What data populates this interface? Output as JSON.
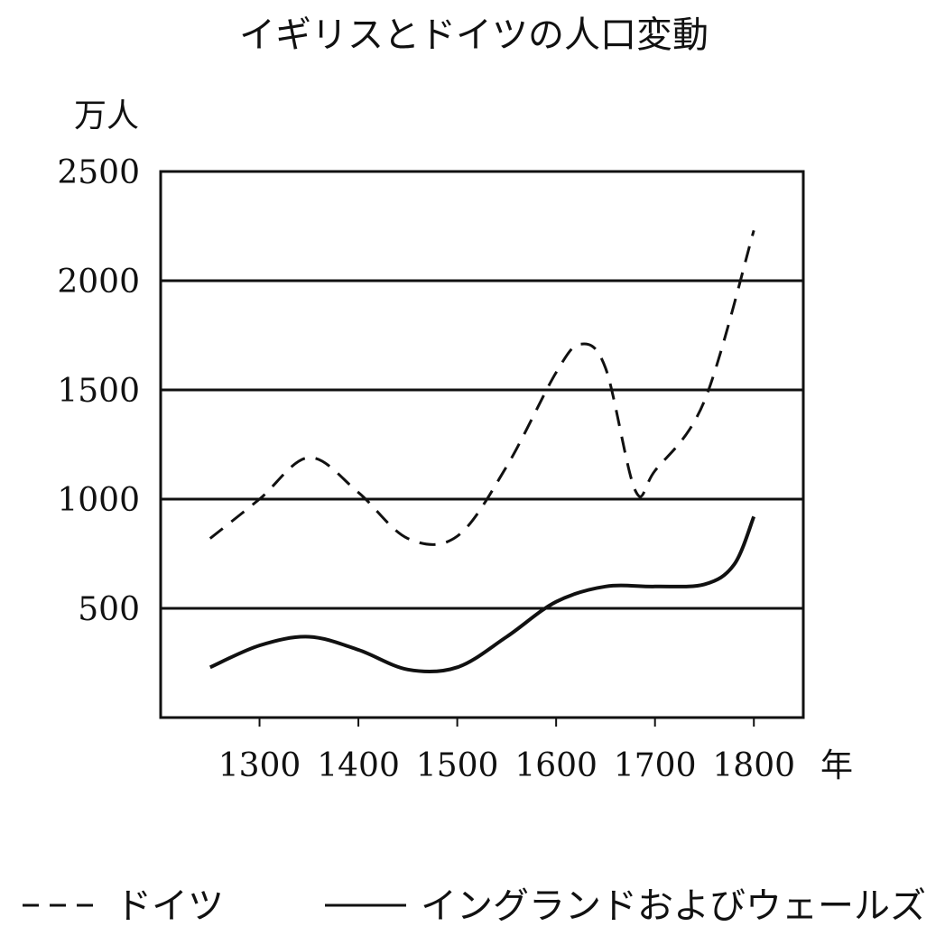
{
  "chart_data": {
    "type": "line",
    "title": "イギリスとドイツの人口変動",
    "ylabel": "万人",
    "xlabel": "年",
    "xlim": [
      1200,
      1850
    ],
    "ylim": [
      0,
      2500
    ],
    "x_ticks": [
      1300,
      1400,
      1500,
      1600,
      1700,
      1800
    ],
    "x_tick_labels": [
      "1300",
      "1400",
      "1500",
      "1600",
      "1700",
      "1800"
    ],
    "y_ticks": [
      500,
      1000,
      1500,
      2000,
      2500
    ],
    "y_tick_labels": [
      "500",
      "1000",
      "1500",
      "2000",
      "2500"
    ],
    "grid": "horizontal",
    "legend_position": "bottom",
    "series": [
      {
        "name": "ドイツ",
        "style": "dashed",
        "color": "#111111",
        "x": [
          1250,
          1300,
          1350,
          1400,
          1450,
          1500,
          1550,
          1600,
          1625,
          1650,
          1680,
          1700,
          1750,
          1800
        ],
        "y": [
          820,
          1000,
          1190,
          1030,
          820,
          830,
          1150,
          1580,
          1710,
          1600,
          1040,
          1130,
          1450,
          2230
        ]
      },
      {
        "name": "イングランドおよびウェールズ",
        "style": "solid",
        "color": "#111111",
        "x": [
          1250,
          1300,
          1350,
          1400,
          1450,
          1500,
          1550,
          1600,
          1650,
          1700,
          1750,
          1780,
          1800
        ],
        "y": [
          230,
          330,
          370,
          310,
          220,
          230,
          370,
          530,
          600,
          600,
          610,
          700,
          920
        ]
      }
    ]
  }
}
